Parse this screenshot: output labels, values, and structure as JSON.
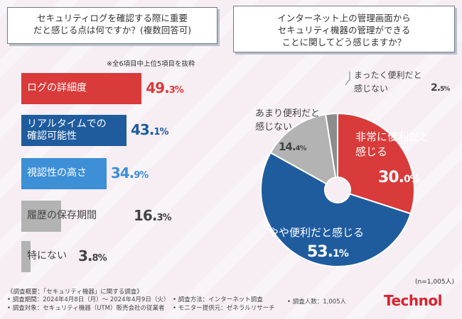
{
  "colors": {
    "red": "#d93a3a",
    "blue": "#1f5c9e",
    "lightblue": "#3d8fd6",
    "gray": "#b3b3b3",
    "dark": "#444444"
  },
  "left": {
    "title_line1": "セキュリティログを確認する際に重要",
    "title_line2": "だと感じる点は何ですか？(複数回答可)",
    "note": "※全6項目中上位5項目を抜粋"
  },
  "right": {
    "title_line1": "インターネット上の管理画面から",
    "title_line2": "セキュリティ機器の管理ができる",
    "title_line3": "ことに関してどう感じますか？"
  },
  "chart_data": [
    {
      "type": "bar",
      "title": "セキュリティログを確認する際に重要だと感じる点は何ですか？(複数回答可)",
      "categories": [
        "ログの詳細度",
        "リアルタイムでの確認可能性",
        "視認性の高さ",
        "履歴の保存期間",
        "特にない"
      ],
      "label_lines": [
        [
          "ログの詳細度"
        ],
        [
          "リアルタイムでの",
          "確認可能性"
        ],
        [
          "視認性の高さ"
        ],
        [
          "履歴の保存期間"
        ],
        [
          "特にない"
        ]
      ],
      "values": [
        49.3,
        43.1,
        34.9,
        16.3,
        3.8
      ],
      "value_labels": [
        [
          "49.",
          "3",
          "%"
        ],
        [
          "43.",
          "1",
          "%"
        ],
        [
          "34.",
          "9",
          "%"
        ],
        [
          "16.",
          "3",
          "%"
        ],
        [
          "3.",
          "8",
          "%"
        ]
      ],
      "bar_colors": [
        "#d93a3a",
        "#1f5c9e",
        "#3d8fd6",
        "#b3b3b3",
        "#b3b3b3"
      ],
      "label_colors": [
        "#ffffff",
        "#ffffff",
        "#ffffff",
        "#444444",
        "#444444"
      ],
      "value_colors": [
        "#d93a3a",
        "#1f5c9e",
        "#3d8fd6",
        "#444444",
        "#444444"
      ],
      "xlim": [
        0,
        60
      ]
    },
    {
      "type": "pie",
      "title": "インターネット上の管理画面からセキュリティ機器の管理ができることに関してどう感じますか？",
      "categories": [
        "非常に便利だと感じる",
        "やや便利だと感じる",
        "あまり便利だと感じない",
        "まったく便利だと感じない"
      ],
      "label_lines": [
        [
          "非常に便利だと",
          "感じる"
        ],
        [
          "やや便利だと感じる"
        ],
        [
          "あまり便利だと",
          "感じない"
        ],
        [
          "まったく便利だと",
          "感じない"
        ]
      ],
      "values": [
        30.0,
        53.1,
        14.4,
        2.5
      ],
      "value_labels": [
        [
          "30.",
          "0",
          "%"
        ],
        [
          "53.",
          "1",
          "%"
        ],
        [
          "14.",
          "4",
          "%"
        ],
        [
          "2.",
          "5",
          "%"
        ]
      ],
      "slice_colors": [
        "#d93a3a",
        "#1f5c9e",
        "#b3b3b3",
        "#8c8c8c"
      ],
      "n_label": "(n=1,005人)"
    }
  ],
  "footer": {
    "line1": "《調査概要：「セキュリティ機器」に関する調査》",
    "period": "• 調査期間：2024年4月8日（月）～ 2024年4月9日（火）",
    "target": "• 調査対象：セキュリティ機器（UTM）販売会社の従業者",
    "method": "• 調査方法：インターネット調査",
    "monitor": "• モニター提供元：ゼネラルリサーチ",
    "count": "• 調査人数：1,005人",
    "brand": "Technol"
  }
}
